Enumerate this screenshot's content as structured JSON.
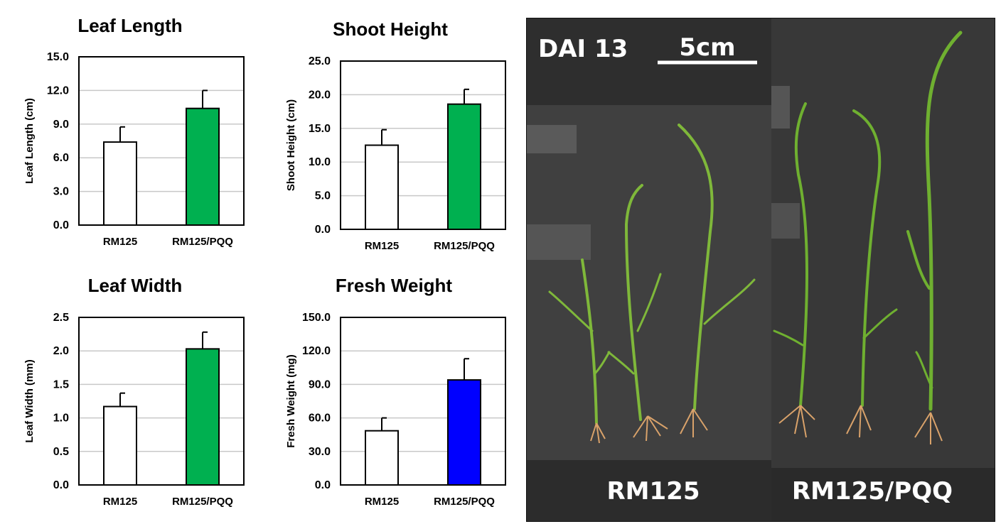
{
  "chart_data": [
    {
      "type": "bar",
      "title": "Leaf Length",
      "ylabel": "Leaf Length (cm)",
      "categories": [
        "RM125",
        "RM125/PQQ"
      ],
      "values": [
        7.4,
        10.4
      ],
      "errors": [
        1.35,
        1.6
      ],
      "colors": [
        "#ffffff",
        "#00b050"
      ],
      "ylim": [
        0,
        15
      ],
      "yticks": [
        "0.0",
        "3.0",
        "6.0",
        "9.0",
        "12.0",
        "15.0"
      ],
      "grid": true
    },
    {
      "type": "bar",
      "title": "Shoot Height",
      "ylabel": "Shoot Height (cm)",
      "categories": [
        "RM125",
        "RM125/PQQ"
      ],
      "values": [
        12.5,
        18.6
      ],
      "errors": [
        2.3,
        2.2
      ],
      "colors": [
        "#ffffff",
        "#00b050"
      ],
      "ylim": [
        0,
        25
      ],
      "yticks": [
        "0.0",
        "5.0",
        "10.0",
        "15.0",
        "20.0",
        "25.0"
      ],
      "grid": true
    },
    {
      "type": "bar",
      "title": "Leaf Width",
      "ylabel": "Leaf Width (mm)",
      "categories": [
        "RM125",
        "RM125/PQQ"
      ],
      "values": [
        1.17,
        2.03
      ],
      "errors": [
        0.2,
        0.25
      ],
      "colors": [
        "#ffffff",
        "#00b050"
      ],
      "ylim": [
        0,
        2.5
      ],
      "yticks": [
        "0.0",
        "0.5",
        "1.0",
        "1.5",
        "2.0",
        "2.5"
      ],
      "grid": true
    },
    {
      "type": "bar",
      "title": "Fresh Weight",
      "ylabel": "Fresh Weight (mg)",
      "categories": [
        "RM125",
        "RM125/PQQ"
      ],
      "values": [
        48.5,
        94.0
      ],
      "errors": [
        11.5,
        19.0
      ],
      "colors": [
        "#ffffff",
        "#0000ff"
      ],
      "ylim": [
        0,
        150
      ],
      "yticks": [
        "0.0",
        "30.0",
        "60.0",
        "90.0",
        "120.0",
        "150.0"
      ],
      "grid": true
    }
  ],
  "photo": {
    "stage_label": "DAI 13",
    "scale_label": "5cm",
    "left_group_label": "RM125",
    "right_group_label": "RM125/PQQ"
  }
}
